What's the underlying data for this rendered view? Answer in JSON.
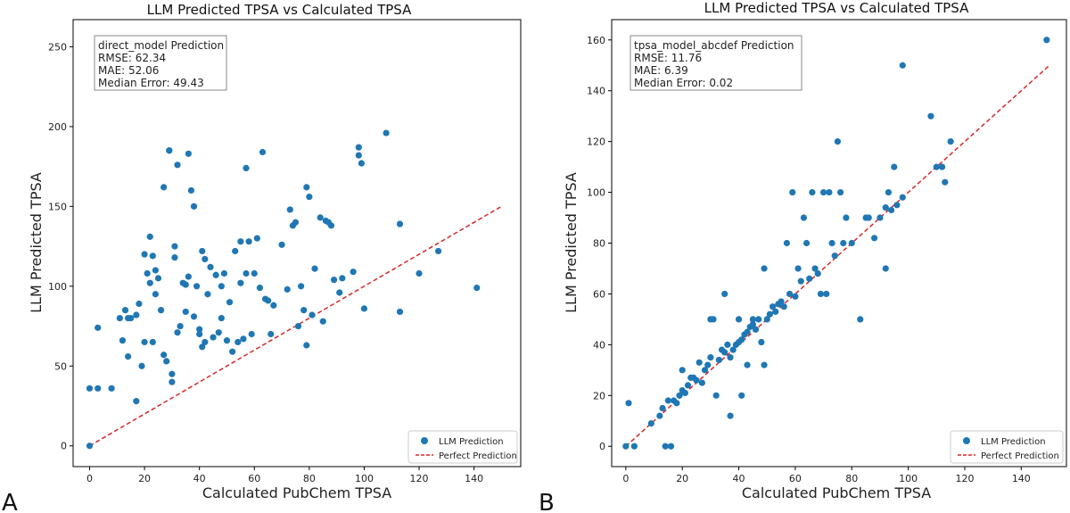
{
  "chart_data": [
    {
      "type": "scatter",
      "panel_label": "A",
      "title": "LLM Predicted TPSA vs Calculated TPSA",
      "xlabel": "Calculated PubChem TPSA",
      "ylabel": "LLM Predicted TPSA",
      "xlim": [
        -6,
        157
      ],
      "ylim": [
        -13,
        267
      ],
      "xticks": [
        0,
        20,
        40,
        60,
        80,
        100,
        120,
        140
      ],
      "yticks": [
        0,
        50,
        100,
        150,
        200,
        250
      ],
      "stats_box": [
        "direct_model Prediction",
        "RMSE: 62.34",
        "MAE: 52.06",
        "Median Error: 49.43"
      ],
      "legend": {
        "placement": "lower-right",
        "scatter_label": "LLM Prediction",
        "line_label": "Perfect Prediction"
      },
      "perfect_line": {
        "from": [
          0,
          0
        ],
        "to": [
          150,
          150
        ]
      },
      "colors": {
        "points": "#1f77b4",
        "line": "#d62728"
      },
      "x": [
        0,
        0,
        3,
        3,
        8,
        11,
        12,
        13,
        14,
        14,
        15,
        17,
        17,
        18,
        19,
        20,
        20,
        21,
        22,
        22,
        23,
        23,
        24,
        24,
        25,
        26,
        27,
        27,
        28,
        29,
        29,
        30,
        30,
        31,
        31,
        32,
        32,
        33,
        34,
        35,
        35,
        36,
        36,
        37,
        38,
        38,
        39,
        40,
        40,
        41,
        41,
        42,
        42,
        43,
        44,
        45,
        46,
        47,
        48,
        48,
        49,
        50,
        51,
        52,
        53,
        54,
        55,
        55,
        56,
        57,
        57,
        58,
        59,
        60,
        61,
        62,
        63,
        64,
        65,
        66,
        67,
        70,
        72,
        73,
        74,
        75,
        76,
        77,
        78,
        79,
        79,
        80,
        81,
        82,
        84,
        85,
        86,
        87,
        88,
        89,
        91,
        92,
        96,
        98,
        98,
        99,
        100,
        108,
        113,
        113,
        120,
        127,
        141
      ],
      "y": [
        0,
        36,
        74,
        36,
        36,
        80,
        66,
        85,
        56,
        80,
        80,
        28,
        82,
        89,
        50,
        65,
        120,
        108,
        131,
        102,
        65,
        119,
        95,
        110,
        105,
        85,
        162,
        57,
        53,
        185,
        185,
        40,
        45,
        118,
        125,
        176,
        71,
        75,
        102,
        101,
        84,
        106,
        183,
        160,
        150,
        81,
        100,
        73,
        70,
        122,
        62,
        65,
        117,
        95,
        112,
        68,
        107,
        71,
        100,
        80,
        108,
        66,
        90,
        59,
        122,
        65,
        102,
        128,
        67,
        174,
        108,
        128,
        70,
        108,
        130,
        99,
        184,
        92,
        91,
        70,
        88,
        126,
        98,
        148,
        138,
        140,
        75,
        100,
        85,
        162,
        63,
        156,
        82,
        111,
        143,
        78,
        141,
        140,
        138,
        104,
        96,
        105,
        109,
        182,
        187,
        177,
        86,
        196,
        84,
        139,
        108,
        122,
        99
      ]
    },
    {
      "type": "scatter",
      "panel_label": "B",
      "title": "LLM Predicted TPSA vs Calculated TPSA",
      "xlabel": "Calculated PubChem TPSA",
      "ylabel": "LLM Predicted TPSA",
      "xlim": [
        -5,
        156
      ],
      "ylim": [
        -8,
        168
      ],
      "xticks": [
        0,
        20,
        40,
        60,
        80,
        100,
        120,
        140
      ],
      "yticks": [
        0,
        20,
        40,
        60,
        80,
        100,
        120,
        140,
        160
      ],
      "stats_box": [
        "tpsa_model_abcdef Prediction",
        "RMSE: 11.76",
        "MAE: 6.39",
        "Median Error: 0.02"
      ],
      "legend": {
        "placement": "lower-right",
        "scatter_label": "LLM Prediction",
        "line_label": "Perfect Prediction"
      },
      "perfect_line": {
        "from": [
          0,
          0
        ],
        "to": [
          150,
          150
        ]
      },
      "colors": {
        "points": "#1f77b4",
        "line": "#d62728"
      },
      "x": [
        0,
        1,
        3,
        9,
        12,
        13,
        14,
        15,
        16,
        17,
        18,
        19,
        20,
        20,
        21,
        22,
        23,
        24,
        25,
        26,
        27,
        28,
        29,
        30,
        30,
        31,
        32,
        33,
        34,
        35,
        35,
        36,
        37,
        37,
        38,
        39,
        40,
        40,
        41,
        41,
        42,
        43,
        43,
        44,
        45,
        45,
        46,
        47,
        48,
        49,
        49,
        50,
        51,
        52,
        53,
        54,
        55,
        56,
        57,
        58,
        59,
        60,
        61,
        62,
        63,
        64,
        65,
        66,
        67,
        68,
        69,
        70,
        71,
        72,
        73,
        74,
        75,
        76,
        77,
        78,
        80,
        83,
        85,
        86,
        88,
        90,
        92,
        92,
        93,
        94,
        95,
        96,
        98,
        98,
        108,
        110,
        112,
        113,
        115,
        149
      ],
      "y": [
        0,
        17,
        0,
        9,
        12,
        15,
        0,
        18,
        0,
        18,
        17,
        20,
        22,
        30,
        21,
        24,
        27,
        27,
        26,
        33,
        25,
        30,
        32,
        35,
        50,
        50,
        20,
        34,
        38,
        60,
        37,
        40,
        35,
        12,
        38,
        40,
        41,
        50,
        42,
        20,
        44,
        32,
        45,
        47,
        48,
        50,
        46,
        50,
        41,
        32,
        70,
        50,
        52,
        55,
        53,
        56,
        57,
        55,
        80,
        60,
        100,
        59,
        70,
        65,
        90,
        80,
        66,
        100,
        70,
        68,
        60,
        100,
        60,
        100,
        80,
        75,
        120,
        100,
        80,
        90,
        80,
        50,
        90,
        90,
        82,
        90,
        94,
        70,
        100,
        93,
        110,
        95,
        98,
        150,
        130,
        110,
        110,
        104,
        120,
        160
      ]
    }
  ]
}
